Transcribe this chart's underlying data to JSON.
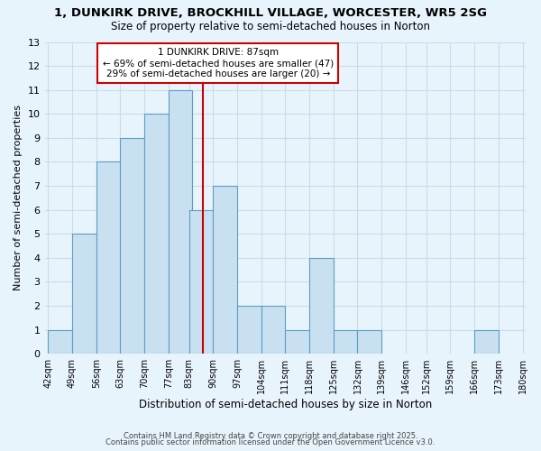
{
  "title": "1, DUNKIRK DRIVE, BROCKHILL VILLAGE, WORCESTER, WR5 2SG",
  "subtitle": "Size of property relative to semi-detached houses in Norton",
  "xlabel": "Distribution of semi-detached houses by size in Norton",
  "ylabel": "Number of semi-detached properties",
  "bins_left": [
    42,
    49,
    56,
    63,
    70,
    77,
    83,
    90,
    97,
    104,
    111,
    118,
    125,
    132,
    139,
    146,
    152,
    159,
    166,
    173
  ],
  "bin_width": 7,
  "counts": [
    1,
    5,
    8,
    9,
    10,
    11,
    6,
    7,
    2,
    2,
    1,
    4,
    1,
    1,
    0,
    0,
    0,
    0,
    1,
    0
  ],
  "bar_color": "#c8e0f0",
  "bar_edge_color": "#5b9ec9",
  "property_line_x": 87,
  "property_line_color": "#cc0000",
  "ylim": [
    0,
    13
  ],
  "yticks": [
    0,
    1,
    2,
    3,
    4,
    5,
    6,
    7,
    8,
    9,
    10,
    11,
    12,
    13
  ],
  "xtick_labels": [
    "42sqm",
    "49sqm",
    "56sqm",
    "63sqm",
    "70sqm",
    "77sqm",
    "83sqm",
    "90sqm",
    "97sqm",
    "104sqm",
    "111sqm",
    "118sqm",
    "125sqm",
    "132sqm",
    "139sqm",
    "146sqm",
    "152sqm",
    "159sqm",
    "166sqm",
    "173sqm",
    "180sqm"
  ],
  "grid_color": "#c8dce8",
  "bg_color": "#e8f4fb",
  "legend_title": "1 DUNKIRK DRIVE: 87sqm",
  "legend_line1": "← 69% of semi-detached houses are smaller (47)",
  "legend_line2": "29% of semi-detached houses are larger (20) →",
  "footnote1": "Contains HM Land Registry data © Crown copyright and database right 2025.",
  "footnote2": "Contains public sector information licensed under the Open Government Licence v3.0."
}
